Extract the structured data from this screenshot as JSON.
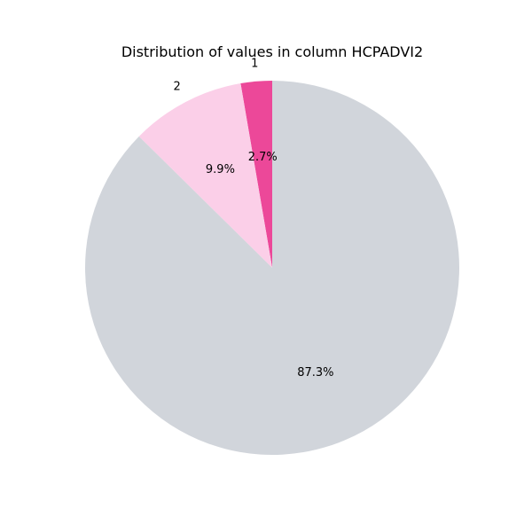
{
  "chart_data": {
    "type": "pie",
    "title": "Distribution of values in column HCPADVI2",
    "start_angle_deg": 90,
    "direction": "counterclockwise",
    "slices": [
      {
        "label": "1",
        "value": 2.7,
        "pct_label": "2.7%",
        "color": "#ec4899"
      },
      {
        "label": "2",
        "value": 9.9,
        "pct_label": "9.9%",
        "color": "#fbcfe8"
      },
      {
        "label": "",
        "value": 87.3,
        "pct_label": "87.3%",
        "color": "#d1d5db"
      }
    ]
  }
}
